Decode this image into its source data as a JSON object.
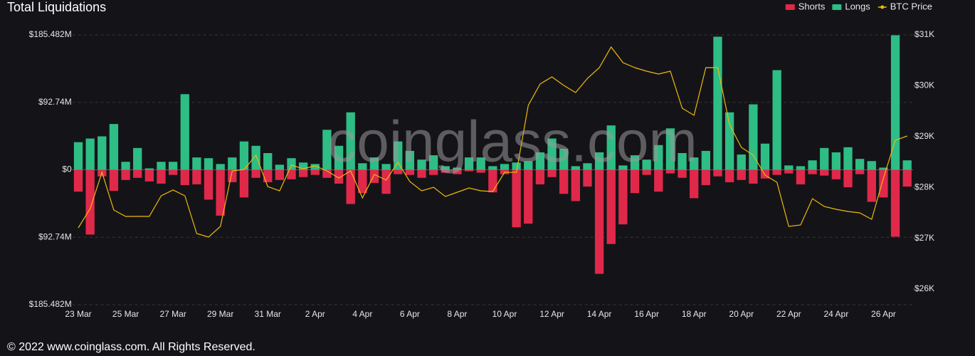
{
  "chart_data": {
    "type": "bar",
    "title": "Total Liquidations",
    "watermark": "coinglass.com",
    "footer": "© 2022 www.coinglass.com. All Rights Reserved.",
    "categories": [
      "23 Mar",
      null,
      null,
      null,
      "25 Mar",
      null,
      null,
      null,
      "27 Mar",
      null,
      null,
      null,
      "29 Mar",
      null,
      null,
      null,
      "31 Mar",
      null,
      null,
      null,
      "2 Apr",
      null,
      null,
      null,
      "4 Apr",
      null,
      null,
      null,
      "6 Apr",
      null,
      null,
      null,
      "8 Apr",
      null,
      null,
      null,
      "10 Apr",
      null,
      null,
      null,
      "12 Apr",
      null,
      null,
      null,
      "14 Apr",
      null,
      null,
      null,
      "16 Apr",
      null,
      null,
      null,
      "18 Apr",
      null,
      null,
      null,
      "20 Apr",
      null,
      null,
      null,
      "22 Apr",
      null,
      null,
      null,
      "24 Apr",
      null,
      null,
      null,
      "26 Apr",
      null,
      null
    ],
    "series": [
      {
        "name": "Shorts",
        "color": "#e0294a",
        "values": [
          -30,
          -89,
          -9,
          -29,
          -14,
          -11,
          -16,
          -19,
          -7,
          -21,
          -20,
          -41,
          -63,
          -17,
          -38,
          -11,
          -17,
          -14,
          -13,
          -10,
          -7,
          -11,
          -19,
          -47,
          -32,
          -18,
          -33,
          -6,
          -7,
          -11,
          -7,
          -4,
          -6,
          -2,
          -4,
          -31,
          -6,
          -79,
          -74,
          -20,
          -10,
          -33,
          -43,
          -23,
          -143,
          -102,
          -75,
          -32,
          -7,
          -30,
          -5,
          -11,
          -39,
          -21,
          -9,
          -17,
          -14,
          -19,
          -12,
          -7,
          -5,
          -20,
          -6,
          -8,
          -13,
          -24,
          -6,
          -44,
          -38,
          -92,
          -23
        ]
      },
      {
        "name": "Longs",
        "color": "#2ebd85",
        "values": [
          38,
          43,
          46,
          63,
          11,
          30,
          2,
          11,
          11,
          104,
          17,
          16,
          8,
          17,
          39,
          33,
          23,
          7,
          16,
          10,
          8,
          55,
          33,
          79,
          9,
          17,
          8,
          39,
          26,
          14,
          20,
          5,
          3,
          17,
          17,
          5,
          8,
          10,
          12,
          24,
          43,
          29,
          5,
          9,
          24,
          61,
          6,
          20,
          14,
          34,
          57,
          23,
          17,
          26,
          183,
          79,
          21,
          90,
          36,
          137,
          6,
          5,
          13,
          30,
          24,
          31,
          15,
          12,
          3,
          185,
          13
        ]
      },
      {
        "name": "BTC Price",
        "color": "#f0b90b",
        "axis": "y2",
        "values": [
          27205,
          27583,
          28297,
          27555,
          27429,
          27430,
          27430,
          27835,
          27950,
          27835,
          27092,
          27022,
          27232,
          28325,
          28353,
          28633,
          28017,
          27933,
          28437,
          28367,
          28423,
          28325,
          28185,
          28325,
          27793,
          28255,
          28143,
          28493,
          28115,
          27933,
          28003,
          27821,
          27905,
          27989,
          27933,
          27919,
          28297,
          28297,
          29613,
          30034,
          30174,
          30006,
          29866,
          30146,
          30356,
          30762,
          30454,
          30356,
          30286,
          30230,
          30286,
          29557,
          29417,
          30356,
          30356,
          29235,
          28787,
          28633,
          28241,
          28101,
          27232,
          27260,
          27779,
          27625,
          27569,
          27527,
          27499,
          27373,
          28185,
          28927,
          29011
        ]
      }
    ],
    "ylim": [
      -185.482,
      185.482
    ],
    "yticks": [
      {
        "value": -185.482,
        "label": "$185.482M"
      },
      {
        "value": -92.74,
        "label": "$92.74M"
      },
      {
        "value": 0,
        "label": "$0"
      },
      {
        "value": 92.74,
        "label": "$92.74M"
      },
      {
        "value": 185.482,
        "label": "$185.482M"
      }
    ],
    "y2lim": [
      25692,
      31000
    ],
    "y2ticks": [
      {
        "value": 26000,
        "label": "$26K"
      },
      {
        "value": 27000,
        "label": "$27K"
      },
      {
        "value": 28000,
        "label": "$28K"
      },
      {
        "value": 29000,
        "label": "$29K"
      },
      {
        "value": 30000,
        "label": "$30K"
      },
      {
        "value": 31000,
        "label": "$31K"
      }
    ],
    "grid": true
  }
}
